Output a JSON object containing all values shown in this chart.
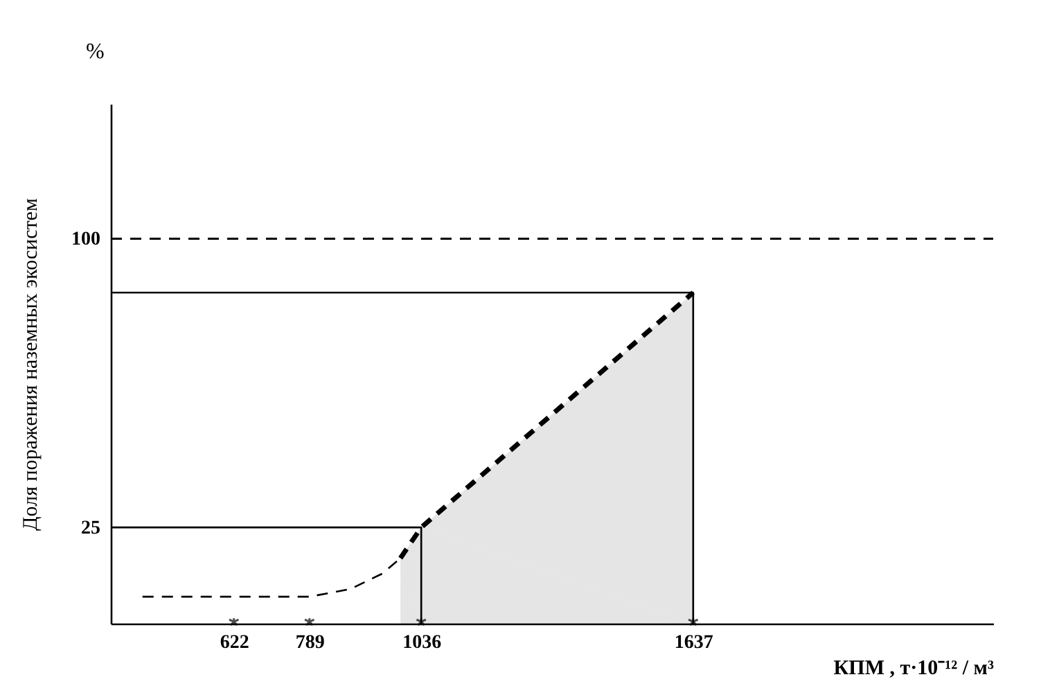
{
  "chart_data": {
    "type": "line",
    "ylabel": "Доля поражения наземных экосистем",
    "xlabel": "КПМ , т·10⁻¹² / м³",
    "annotations": [
      "%"
    ],
    "xlim": [
      350,
      2300
    ],
    "xticks": [
      622,
      789,
      1036,
      1637
    ],
    "ylim": [
      0,
      135
    ],
    "yticks": [
      25,
      100
    ],
    "grid": false,
    "ref_lines": [
      {
        "axis": "y",
        "value": 100,
        "line_style": "dashed",
        "color": "#000000"
      }
    ],
    "series": [
      {
        "line_style": "dashed",
        "color": "#000000",
        "x": [
          420,
          789,
          880,
          950,
          990
        ],
        "values": [
          7,
          7,
          9,
          13,
          17
        ]
      },
      {
        "type": "area",
        "line_style": "dashed",
        "color": "#000000",
        "x": [
          990,
          1036,
          1637
        ],
        "values": [
          17,
          25,
          86
        ]
      },
      {
        "type": "line",
        "line_style": "solid",
        "color": "#000000",
        "x": [
          350,
          1036,
          1036
        ],
        "values": [
          25,
          25,
          0
        ]
      },
      {
        "type": "line",
        "line_style": "solid",
        "color": "#000000",
        "x": [
          350,
          1637,
          1637
        ],
        "values": [
          86,
          86,
          0
        ]
      },
      {
        "type": "scatter",
        "marker": "cross",
        "color": "#000000",
        "x": [
          622,
          789,
          1036,
          1637
        ],
        "values": [
          0,
          0,
          0,
          0
        ]
      }
    ]
  }
}
